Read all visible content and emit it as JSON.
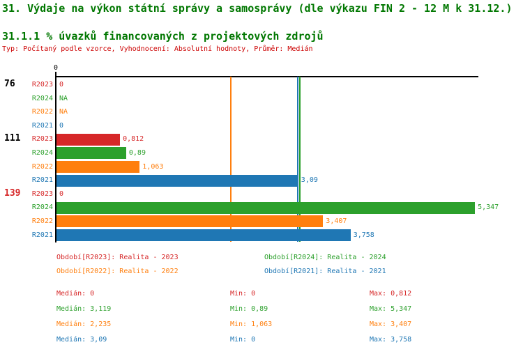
{
  "header": {
    "title": "31. Výdaje na výkon státní správy a samosprávy (dle výkazu FIN 2 - 12 M k 31.12.)",
    "subtitle": "31.1.1 % úvazků financovaných z projektových zdrojů",
    "meta": "Typ: Počítaný podle vzorce, Vyhodnocení: Absolutní hodnoty, Průměr: Medián",
    "title_color": "#007700",
    "meta_color": "#cc0000"
  },
  "chart_data": {
    "type": "bar",
    "orientation": "horizontal-grouped",
    "title": "31.1.1 % úvazků financovaných z projektových zdrojů",
    "xlabel": "",
    "ylabel": "",
    "xlim": [
      0,
      5.4
    ],
    "x_tick_labels": [
      "0"
    ],
    "grid": false,
    "axis_color": "#000000",
    "series_order": [
      "R2023",
      "R2024",
      "R2022",
      "R2021"
    ],
    "series_colors": {
      "R2023": "#d62728",
      "R2024": "#2ca02c",
      "R2022": "#ff7f0e",
      "R2021": "#1f77b4"
    },
    "groups": [
      {
        "label": "76",
        "label_color": "#000000",
        "bars": [
          {
            "series": "R2023",
            "value": 0,
            "display": "0"
          },
          {
            "series": "R2024",
            "value": null,
            "display": "NA"
          },
          {
            "series": "R2022",
            "value": null,
            "display": "NA"
          },
          {
            "series": "R2021",
            "value": 0,
            "display": "0"
          }
        ]
      },
      {
        "label": "111",
        "label_color": "#000000",
        "bars": [
          {
            "series": "R2023",
            "value": 0.812,
            "display": "0,812"
          },
          {
            "series": "R2024",
            "value": 0.89,
            "display": "0,89"
          },
          {
            "series": "R2022",
            "value": 1.063,
            "display": "1,063"
          },
          {
            "series": "R2021",
            "value": 3.09,
            "display": "3,09"
          }
        ]
      },
      {
        "label": "139",
        "label_color": "#d62728",
        "bars": [
          {
            "series": "R2023",
            "value": 0,
            "display": "0"
          },
          {
            "series": "R2024",
            "value": 5.347,
            "display": "5,347"
          },
          {
            "series": "R2022",
            "value": 3.407,
            "display": "3,407"
          },
          {
            "series": "R2021",
            "value": 3.758,
            "display": "3,758"
          }
        ]
      }
    ],
    "median_lines": [
      {
        "series": "R2022",
        "value": 2.235,
        "color": "#ff7f0e"
      },
      {
        "series": "R2021",
        "value": 3.09,
        "color": "#1f77b4"
      },
      {
        "series": "R2024",
        "value": 3.119,
        "color": "#2ca02c"
      }
    ]
  },
  "legend": {
    "items": [
      {
        "text": "Období[R2023]: Realita - 2023",
        "color": "#d62728"
      },
      {
        "text": "Období[R2024]: Realita - 2024",
        "color": "#2ca02c"
      },
      {
        "text": "Období[R2022]: Realita - 2022",
        "color": "#ff7f0e"
      },
      {
        "text": "Období[R2021]: Realita - 2021",
        "color": "#1f77b4"
      }
    ]
  },
  "stats": {
    "rows": [
      {
        "median": "Medián: 0",
        "min": "Min: 0",
        "max": "Max: 0,812",
        "color": "#d62728"
      },
      {
        "median": "Medián: 3,119",
        "min": "Min: 0,89",
        "max": "Max: 5,347",
        "color": "#2ca02c"
      },
      {
        "median": "Medián: 2,235",
        "min": "Min: 1,063",
        "max": "Max: 3,407",
        "color": "#ff7f0e"
      },
      {
        "median": "Medián: 3,09",
        "min": "Min: 0",
        "max": "Max: 3,758",
        "color": "#1f77b4"
      }
    ]
  }
}
